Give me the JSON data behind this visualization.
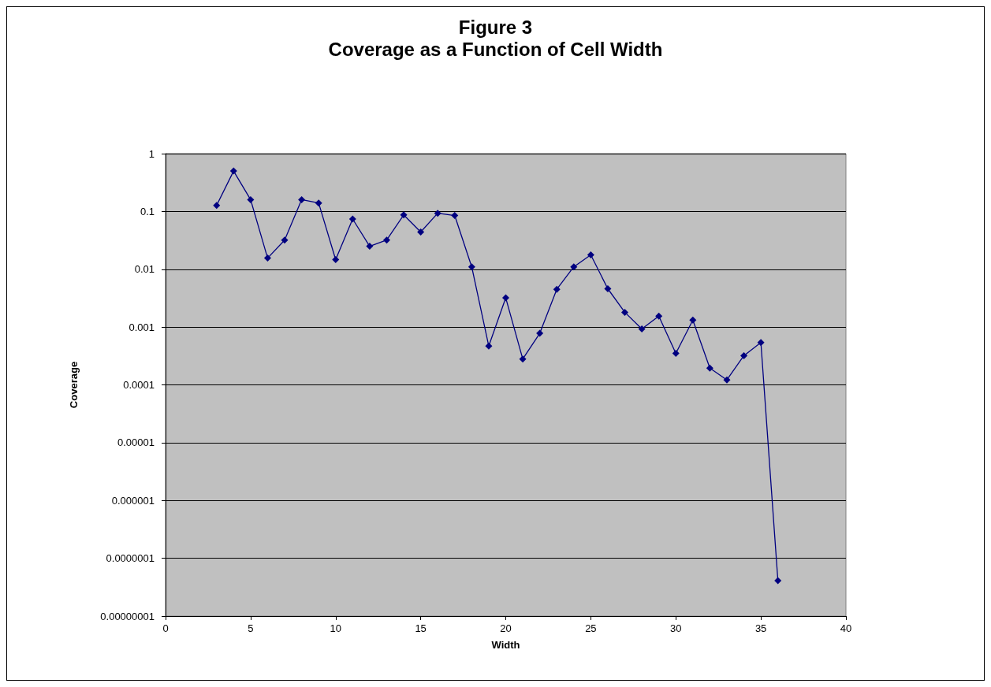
{
  "chart_data": {
    "type": "line",
    "title": "Figure 3",
    "subtitle": "Coverage as a Function of Cell Width",
    "xlabel": "Width",
    "ylabel": "Coverage",
    "x": [
      3,
      4,
      5,
      6,
      7,
      8,
      9,
      10,
      11,
      12,
      13,
      14,
      15,
      16,
      17,
      18,
      19,
      20,
      21,
      22,
      23,
      24,
      25,
      26,
      27,
      28,
      29,
      30,
      31,
      32,
      33,
      34,
      35,
      36
    ],
    "series": [
      {
        "color": "#000080",
        "values": [
          0.127,
          0.5,
          0.16,
          0.0156,
          0.032,
          0.16,
          0.14,
          0.0147,
          0.074,
          0.025,
          0.032,
          0.087,
          0.044,
          0.093,
          0.085,
          0.011,
          0.00047,
          0.0032,
          0.00028,
          0.00078,
          0.0045,
          0.011,
          0.0177,
          0.0046,
          0.0018,
          0.00093,
          0.00155,
          0.00035,
          0.00132,
          0.000195,
          0.000122,
          0.00032,
          0.00054,
          4.1e-08
        ]
      }
    ],
    "xlim": [
      0,
      40
    ],
    "xticks": [
      0,
      5,
      10,
      15,
      20,
      25,
      30,
      35,
      40
    ],
    "ylim": [
      1e-08,
      1
    ],
    "yticks": [
      {
        "value": 1e-08,
        "label": "0.00000001"
      },
      {
        "value": 1e-07,
        "label": "0.0000001"
      },
      {
        "value": 1e-06,
        "label": "0.000001"
      },
      {
        "value": 1e-05,
        "label": "0.00001"
      },
      {
        "value": 0.0001,
        "label": "0.0001"
      },
      {
        "value": 0.001,
        "label": "0.001"
      },
      {
        "value": 0.01,
        "label": "0.01"
      },
      {
        "value": 0.1,
        "label": "0.1"
      },
      {
        "value": 1,
        "label": "1"
      }
    ],
    "log": "y",
    "grid": "y",
    "marker": "diamond",
    "line_style": "solid"
  }
}
